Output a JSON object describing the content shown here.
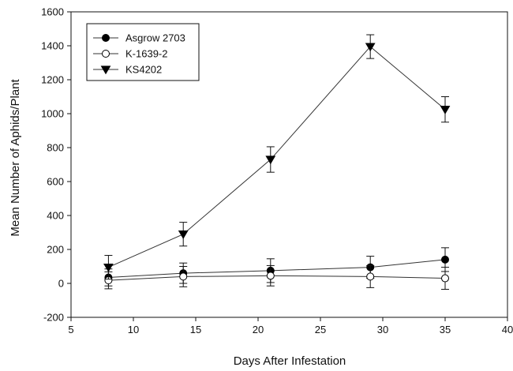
{
  "chart_data": {
    "type": "line",
    "xlabel": "Days After Infestation",
    "ylabel": "Mean Number of Aphids/Plant",
    "xlim": [
      5,
      40
    ],
    "ylim": [
      -200,
      1600
    ],
    "xticks": [
      "5",
      "10",
      "15",
      "20",
      "25",
      "30",
      "35",
      "40"
    ],
    "yticks": [
      "-200",
      "0",
      "200",
      "400",
      "600",
      "800",
      "1000",
      "1200",
      "1400",
      "1600"
    ],
    "grid": false,
    "legend_position": "top-left",
    "series": [
      {
        "name": "Asgrow 2703",
        "marker": "filled-circle",
        "x": [
          8,
          14,
          21,
          29,
          35
        ],
        "y": [
          35,
          60,
          75,
          95,
          140
        ],
        "err": [
          50,
          60,
          70,
          65,
          70
        ]
      },
      {
        "name": "K-1639-2",
        "marker": "open-circle",
        "x": [
          8,
          14,
          21,
          29,
          35
        ],
        "y": [
          18,
          40,
          45,
          40,
          30
        ],
        "err": [
          50,
          60,
          60,
          65,
          65
        ]
      },
      {
        "name": "KS4202",
        "marker": "filled-triangle-down",
        "x": [
          8,
          14,
          21,
          29,
          35
        ],
        "y": [
          95,
          290,
          730,
          1395,
          1025
        ],
        "err": [
          70,
          70,
          75,
          70,
          75
        ]
      }
    ]
  }
}
